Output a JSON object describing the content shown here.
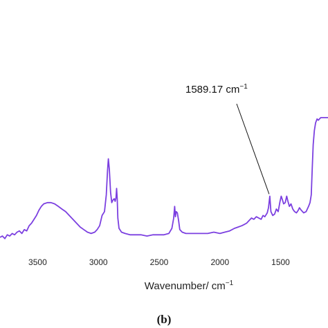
{
  "chart_data": {
    "type": "line",
    "title": "",
    "xlabel_main": "Wavenumber/ cm",
    "xlabel_sup": "−1",
    "ylabel": "",
    "xlim": [
      3810,
      1110
    ],
    "x_reversed": true,
    "ylim": [
      0,
      100
    ],
    "grid": false,
    "legend": "none",
    "x_ticks": [
      3500,
      3000,
      2500,
      2000,
      1500
    ],
    "series": [
      {
        "color": "#7b3fe0",
        "points": [
          [
            3810,
            7
          ],
          [
            3790,
            8
          ],
          [
            3770,
            6
          ],
          [
            3750,
            9
          ],
          [
            3730,
            8
          ],
          [
            3710,
            10
          ],
          [
            3690,
            9
          ],
          [
            3670,
            11
          ],
          [
            3650,
            12
          ],
          [
            3630,
            10
          ],
          [
            3610,
            13
          ],
          [
            3590,
            12
          ],
          [
            3570,
            16
          ],
          [
            3550,
            18
          ],
          [
            3530,
            21
          ],
          [
            3510,
            24
          ],
          [
            3490,
            28
          ],
          [
            3470,
            31
          ],
          [
            3450,
            33
          ],
          [
            3420,
            34
          ],
          [
            3390,
            34
          ],
          [
            3360,
            33
          ],
          [
            3330,
            31
          ],
          [
            3300,
            29
          ],
          [
            3270,
            27
          ],
          [
            3240,
            24
          ],
          [
            3210,
            21
          ],
          [
            3180,
            18
          ],
          [
            3150,
            15
          ],
          [
            3120,
            13
          ],
          [
            3090,
            11
          ],
          [
            3060,
            10
          ],
          [
            3030,
            11
          ],
          [
            3010,
            13
          ],
          [
            2990,
            16
          ],
          [
            2970,
            24
          ],
          [
            2950,
            27
          ],
          [
            2935,
            40
          ],
          [
            2925,
            59
          ],
          [
            2918,
            68
          ],
          [
            2910,
            60
          ],
          [
            2900,
            42
          ],
          [
            2890,
            34
          ],
          [
            2880,
            36
          ],
          [
            2870,
            37
          ],
          [
            2862,
            35
          ],
          [
            2855,
            38
          ],
          [
            2850,
            45
          ],
          [
            2845,
            37
          ],
          [
            2840,
            22
          ],
          [
            2830,
            14
          ],
          [
            2810,
            11
          ],
          [
            2780,
            10
          ],
          [
            2740,
            9
          ],
          [
            2700,
            9
          ],
          [
            2650,
            9
          ],
          [
            2600,
            8
          ],
          [
            2550,
            9
          ],
          [
            2500,
            9
          ],
          [
            2460,
            9
          ],
          [
            2420,
            10
          ],
          [
            2395,
            14
          ],
          [
            2380,
            22
          ],
          [
            2372,
            31
          ],
          [
            2366,
            23
          ],
          [
            2360,
            27
          ],
          [
            2350,
            26
          ],
          [
            2340,
            20
          ],
          [
            2330,
            13
          ],
          [
            2310,
            11
          ],
          [
            2280,
            10
          ],
          [
            2240,
            10
          ],
          [
            2200,
            10
          ],
          [
            2150,
            10
          ],
          [
            2100,
            10
          ],
          [
            2050,
            11
          ],
          [
            2000,
            10
          ],
          [
            1960,
            11
          ],
          [
            1920,
            12
          ],
          [
            1880,
            14
          ],
          [
            1850,
            15
          ],
          [
            1820,
            16
          ],
          [
            1800,
            17
          ],
          [
            1780,
            18
          ],
          [
            1760,
            20
          ],
          [
            1740,
            22
          ],
          [
            1720,
            21
          ],
          [
            1700,
            23
          ],
          [
            1680,
            22
          ],
          [
            1660,
            21
          ],
          [
            1645,
            24
          ],
          [
            1630,
            23
          ],
          [
            1610,
            26
          ],
          [
            1600,
            30
          ],
          [
            1589,
            39
          ],
          [
            1580,
            27
          ],
          [
            1565,
            24
          ],
          [
            1550,
            25
          ],
          [
            1535,
            29
          ],
          [
            1520,
            27
          ],
          [
            1505,
            35
          ],
          [
            1495,
            39
          ],
          [
            1485,
            36
          ],
          [
            1475,
            33
          ],
          [
            1462,
            34
          ],
          [
            1450,
            39
          ],
          [
            1440,
            35
          ],
          [
            1428,
            31
          ],
          [
            1415,
            33
          ],
          [
            1400,
            29
          ],
          [
            1385,
            27
          ],
          [
            1370,
            26
          ],
          [
            1355,
            28
          ],
          [
            1345,
            30
          ],
          [
            1330,
            28
          ],
          [
            1310,
            26
          ],
          [
            1290,
            27
          ],
          [
            1270,
            31
          ],
          [
            1258,
            34
          ],
          [
            1248,
            40
          ],
          [
            1240,
            60
          ],
          [
            1232,
            79
          ],
          [
            1222,
            90
          ],
          [
            1212,
            96
          ],
          [
            1200,
            99
          ],
          [
            1190,
            98
          ],
          [
            1180,
            99
          ],
          [
            1170,
            100
          ],
          [
            1150,
            100
          ],
          [
            1130,
            100
          ],
          [
            1110,
            100
          ]
        ]
      }
    ],
    "annotations": [
      {
        "text": "1589.17 cm",
        "sup": "−1",
        "target": [
          1589,
          39
        ]
      }
    ],
    "panel_label": "(b)"
  }
}
